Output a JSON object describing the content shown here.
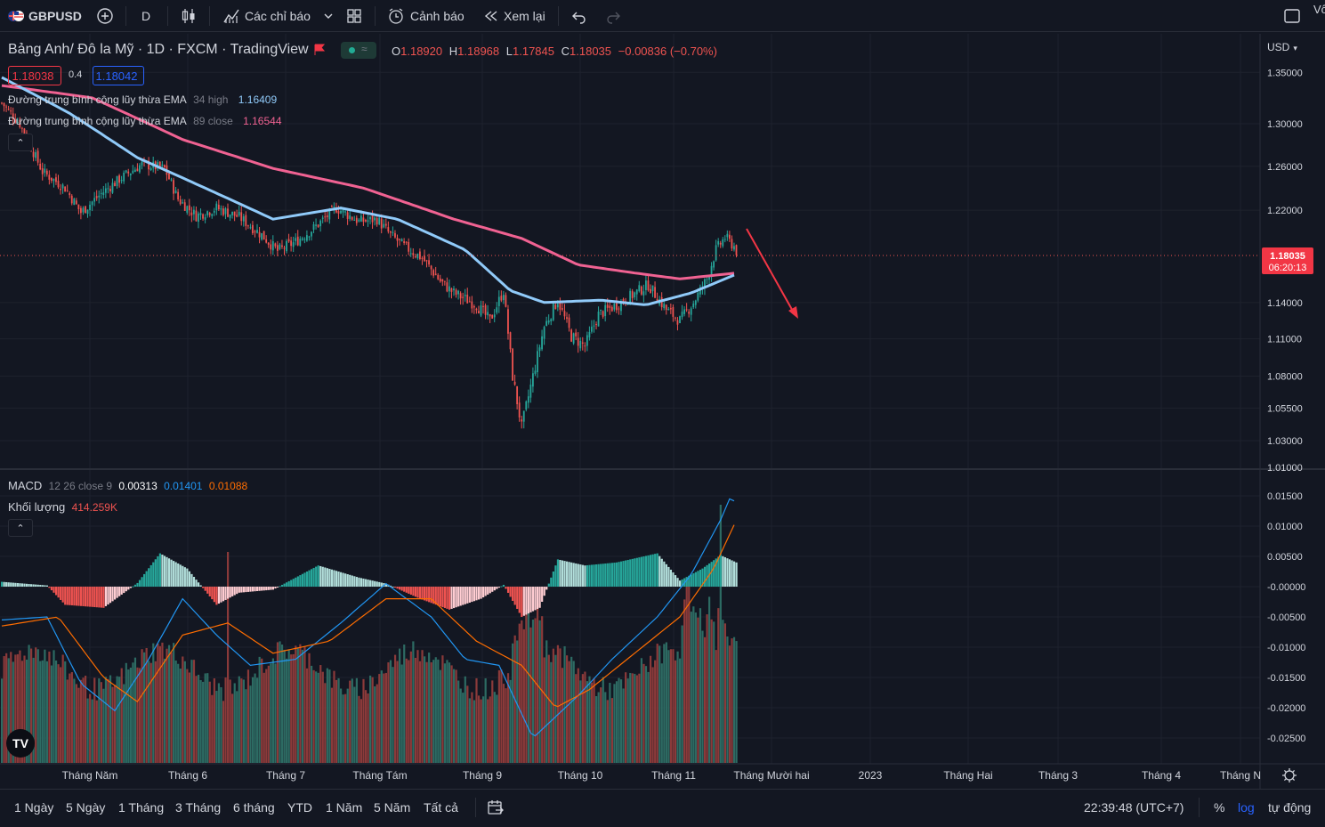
{
  "toolbar": {
    "symbol": "GBPUSD",
    "interval": "D",
    "indicators_label": "Các chỉ báo",
    "alert_label": "Cảnh báo",
    "replay_label": "Xem lại",
    "right_cut_label": "Vô"
  },
  "legend": {
    "title": "Bảng Anh/ Đô la Mỹ · 1D · FXCM · TradingView",
    "o_label": "O",
    "o_value": "1.18920",
    "h_label": "H",
    "h_value": "1.18968",
    "l_label": "L",
    "l_value": "1.17845",
    "c_label": "C",
    "c_value": "1.18035",
    "change": "−0.00836 (−0.70%)",
    "bid": "1.18038",
    "spread": "0.4",
    "ask": "1.18042",
    "ema1_name": "Đường trung bình cộng lũy thừa EMA",
    "ema1_params": "34 high",
    "ema1_value": "1.16409",
    "ema2_name": "Đường trung bình cộng lũy thừa EMA",
    "ema2_params": "89 close",
    "ema2_value": "1.16544",
    "macd_name": "MACD",
    "macd_params": "12 26 close 9",
    "macd_hist": "0.00313",
    "macd_line": "0.01401",
    "macd_signal": "0.01088",
    "vol_name": "Khối lượng",
    "vol_value": "414.259K"
  },
  "price_axis": {
    "currency": "USD",
    "ticks": [
      "1.35000",
      "1.30000",
      "1.26000",
      "1.22000",
      "1.18035",
      "1.14000",
      "1.11000",
      "1.08000",
      "1.05500",
      "1.03000",
      "1.01000"
    ],
    "current_price": "1.18035",
    "countdown": "06:20:13"
  },
  "macd_axis": {
    "ticks": [
      "0.01500",
      "0.01000",
      "0.00500",
      "-0.00000",
      "-0.00500",
      "-0.01000",
      "-0.01500",
      "-0.02000",
      "-0.02500"
    ]
  },
  "time_axis": {
    "labels": [
      "Tháng Năm",
      "Tháng 6",
      "Tháng 7",
      "Tháng Tám",
      "Tháng 9",
      "Tháng 10",
      "Tháng 11",
      "Tháng Mười hai",
      "2023",
      "Tháng Hai",
      "Tháng 3",
      "Tháng 4",
      "Tháng N"
    ]
  },
  "bottom": {
    "ranges": [
      "1 Ngày",
      "5 Ngày",
      "1 Tháng",
      "3 Tháng",
      "6 tháng",
      "YTD",
      "1 Năm",
      "5 Năm",
      "Tất cả"
    ],
    "clock": "22:39:48 (UTC+7)",
    "percent": "%",
    "log": "log",
    "auto": "tự động"
  },
  "colors": {
    "bg": "#131722",
    "up": "#26a69a",
    "down": "#ef5350",
    "ema34": "#90caf9",
    "ema89": "#f06292",
    "macd": "#2196f3",
    "signal": "#ff6d00",
    "arrow": "#f23645",
    "accent": "#2962ff"
  },
  "chart_data": {
    "type": "candlestick",
    "symbol": "GBPUSD",
    "timeframe": "1D",
    "last": {
      "open": 1.1892,
      "high": 1.18968,
      "low": 1.17845,
      "close": 1.18035
    },
    "ema34_high": 1.16409,
    "ema89_close": 1.16544,
    "price_range": [
      1.01,
      1.36
    ],
    "path": [
      [
        0,
        1.32
      ],
      [
        8,
        1.3
      ],
      [
        18,
        1.255
      ],
      [
        28,
        1.24
      ],
      [
        35,
        1.218
      ],
      [
        44,
        1.235
      ],
      [
        52,
        1.248
      ],
      [
        62,
        1.262
      ],
      [
        72,
        1.258
      ],
      [
        78,
        1.23
      ],
      [
        86,
        1.215
      ],
      [
        95,
        1.222
      ],
      [
        105,
        1.214
      ],
      [
        115,
        1.198
      ],
      [
        122,
        1.184
      ],
      [
        130,
        1.192
      ],
      [
        138,
        1.204
      ],
      [
        148,
        1.222
      ],
      [
        158,
        1.21
      ],
      [
        166,
        1.212
      ],
      [
        172,
        1.198
      ],
      [
        178,
        1.188
      ],
      [
        186,
        1.178
      ],
      [
        194,
        1.158
      ],
      [
        200,
        1.148
      ],
      [
        210,
        1.138
      ],
      [
        216,
        1.125
      ],
      [
        222,
        1.15
      ],
      [
        226,
        1.08
      ],
      [
        230,
        1.04
      ],
      [
        234,
        1.072
      ],
      [
        240,
        1.12
      ],
      [
        246,
        1.142
      ],
      [
        252,
        1.112
      ],
      [
        258,
        1.104
      ],
      [
        264,
        1.13
      ],
      [
        272,
        1.138
      ],
      [
        278,
        1.145
      ],
      [
        286,
        1.155
      ],
      [
        294,
        1.134
      ],
      [
        300,
        1.125
      ],
      [
        306,
        1.14
      ],
      [
        312,
        1.16
      ],
      [
        316,
        1.185
      ],
      [
        320,
        1.196
      ],
      [
        324,
        1.188
      ],
      [
        325,
        1.18
      ]
    ],
    "ema34_path": [
      [
        0,
        1.345
      ],
      [
        30,
        1.31
      ],
      [
        60,
        1.268
      ],
      [
        90,
        1.24
      ],
      [
        120,
        1.212
      ],
      [
        150,
        1.222
      ],
      [
        175,
        1.212
      ],
      [
        205,
        1.185
      ],
      [
        225,
        1.15
      ],
      [
        240,
        1.14
      ],
      [
        265,
        1.142
      ],
      [
        285,
        1.138
      ],
      [
        305,
        1.148
      ],
      [
        325,
        1.164
      ]
    ],
    "ema89_path": [
      [
        0,
        1.337
      ],
      [
        40,
        1.325
      ],
      [
        80,
        1.285
      ],
      [
        120,
        1.258
      ],
      [
        160,
        1.24
      ],
      [
        200,
        1.212
      ],
      [
        230,
        1.195
      ],
      [
        255,
        1.172
      ],
      [
        280,
        1.165
      ],
      [
        300,
        1.16
      ],
      [
        325,
        1.165
      ]
    ],
    "macd_path": [
      [
        0,
        -0.0055
      ],
      [
        20,
        -0.005
      ],
      [
        35,
        -0.016
      ],
      [
        50,
        -0.0205
      ],
      [
        65,
        -0.012
      ],
      [
        80,
        -0.002
      ],
      [
        95,
        -0.008
      ],
      [
        110,
        -0.013
      ],
      [
        130,
        -0.012
      ],
      [
        150,
        -0.006
      ],
      [
        170,
        0.0005
      ],
      [
        190,
        -0.005
      ],
      [
        205,
        -0.012
      ],
      [
        220,
        -0.013
      ],
      [
        235,
        -0.025
      ],
      [
        255,
        -0.018
      ],
      [
        270,
        -0.012
      ],
      [
        290,
        -0.005
      ],
      [
        305,
        0.002
      ],
      [
        318,
        0.011
      ],
      [
        322,
        0.0145
      ],
      [
        325,
        0.014
      ]
    ],
    "signal_path": [
      [
        0,
        -0.0065
      ],
      [
        25,
        -0.005
      ],
      [
        45,
        -0.015
      ],
      [
        60,
        -0.019
      ],
      [
        80,
        -0.008
      ],
      [
        100,
        -0.006
      ],
      [
        120,
        -0.011
      ],
      [
        145,
        -0.009
      ],
      [
        170,
        -0.002
      ],
      [
        190,
        -0.002
      ],
      [
        210,
        -0.009
      ],
      [
        230,
        -0.013
      ],
      [
        245,
        -0.02
      ],
      [
        260,
        -0.017
      ],
      [
        280,
        -0.011
      ],
      [
        300,
        -0.005
      ],
      [
        315,
        0.003
      ],
      [
        325,
        0.011
      ]
    ],
    "histogram_path": [
      [
        0,
        0.0008
      ],
      [
        20,
        0.0002
      ],
      [
        28,
        -0.003
      ],
      [
        45,
        -0.0035
      ],
      [
        60,
        0.0006
      ],
      [
        70,
        0.0055
      ],
      [
        82,
        0.003
      ],
      [
        95,
        -0.003
      ],
      [
        105,
        -0.001
      ],
      [
        120,
        -0.0005
      ],
      [
        140,
        0.0035
      ],
      [
        158,
        0.0015
      ],
      [
        170,
        0.0005
      ],
      [
        185,
        -0.002
      ],
      [
        198,
        -0.0038
      ],
      [
        212,
        -0.002
      ],
      [
        222,
        0.0003
      ],
      [
        230,
        -0.005
      ],
      [
        238,
        -0.0035
      ],
      [
        246,
        0.0045
      ],
      [
        258,
        0.0035
      ],
      [
        272,
        0.004
      ],
      [
        290,
        0.0055
      ],
      [
        300,
        0.001
      ],
      [
        310,
        0.003
      ],
      [
        318,
        0.0052
      ],
      [
        325,
        0.004
      ]
    ],
    "volume_scale": "relative",
    "annotation": "red downward arrow drawn to the right of last candle"
  }
}
